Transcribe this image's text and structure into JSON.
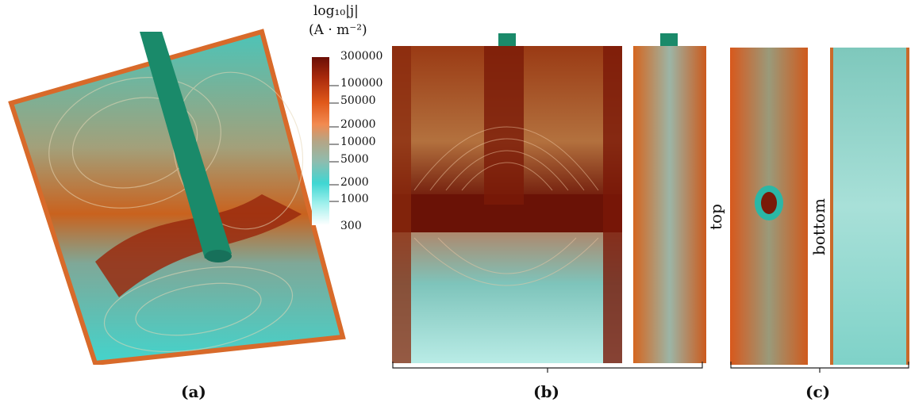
{
  "colorbar": {
    "title_line1": "log₁₀|j|",
    "title_line2": "(A · m⁻²)",
    "ticks": [
      "300000",
      "100000",
      "50000",
      "20000",
      "10000",
      "5000",
      "2000",
      "1000",
      "300"
    ],
    "colors": [
      "#6b0e06",
      "#a8290c",
      "#e0581a",
      "#f28a50",
      "#b5a585",
      "#8fbcae",
      "#3fd6d2",
      "#9ff0ec",
      "#ffffff"
    ]
  },
  "panels": {
    "a": {
      "label": "(a)"
    },
    "b": {
      "label": "(b)"
    },
    "c": {
      "label": "(c)",
      "top_label": "top",
      "bottom_label": "bottom"
    }
  },
  "colors": {
    "electrode": "#1a8a6a",
    "dark_red": "#6e1206",
    "orange": "#e05a1c",
    "tan": "#a59a78",
    "cyan": "#3fd0c8"
  }
}
